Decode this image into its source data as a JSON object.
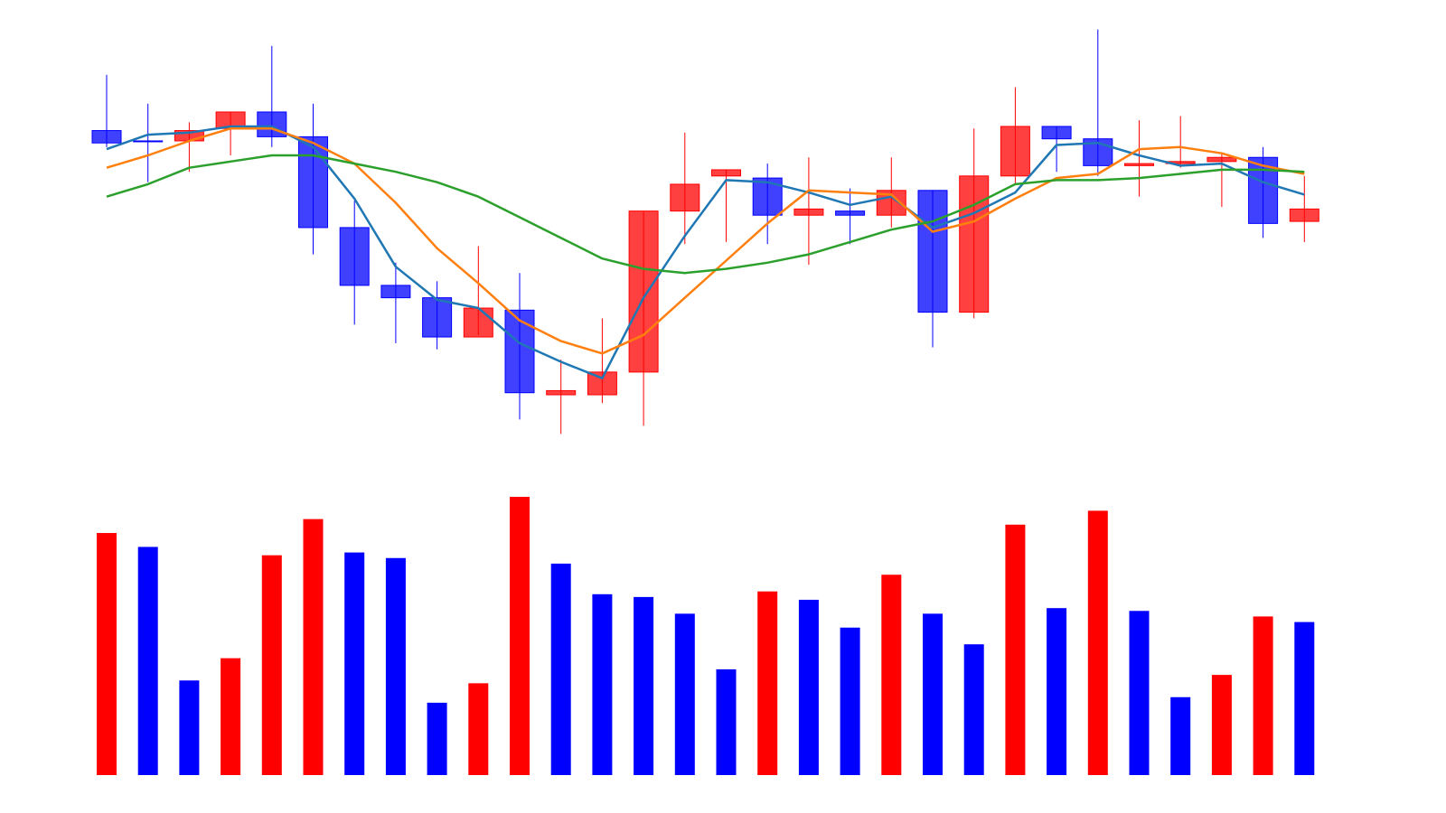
{
  "chart_data": [
    {
      "type": "candlestick",
      "title": "",
      "xlabel": "",
      "ylabel": "",
      "ylim": [
        0,
        100
      ],
      "grid": false,
      "legend": "none",
      "up_color": "#FF0000",
      "down_color": "#0000FF",
      "candles": [
        {
          "open": 74.5,
          "close": 71.5,
          "high": 88.0,
          "low": 70.5
        },
        {
          "open": 72.0,
          "close": 71.8,
          "high": 81.0,
          "low": 62.0
        },
        {
          "open": 72.0,
          "close": 74.5,
          "high": 76.5,
          "low": 64.5
        },
        {
          "open": 75.0,
          "close": 79.0,
          "high": 79.0,
          "low": 68.5
        },
        {
          "open": 79.0,
          "close": 73.0,
          "high": 95.0,
          "low": 70.5
        },
        {
          "open": 73.0,
          "close": 51.0,
          "high": 81.0,
          "low": 44.5
        },
        {
          "open": 51.0,
          "close": 37.0,
          "high": 57.5,
          "low": 27.5
        },
        {
          "open": 37.0,
          "close": 34.0,
          "high": 42.5,
          "low": 23.0
        },
        {
          "open": 34.0,
          "close": 24.5,
          "high": 38.0,
          "low": 21.5
        },
        {
          "open": 24.5,
          "close": 31.5,
          "high": 46.5,
          "low": 25.0
        },
        {
          "open": 31.0,
          "close": 11.0,
          "high": 40.0,
          "low": 4.5
        },
        {
          "open": 10.5,
          "close": 11.5,
          "high": 19.0,
          "low": 1.0
        },
        {
          "open": 10.5,
          "close": 16.0,
          "high": 29.0,
          "low": 8.5
        },
        {
          "open": 16.0,
          "close": 55.0,
          "high": 55.0,
          "low": 3.0
        },
        {
          "open": 55.0,
          "close": 61.5,
          "high": 74.0,
          "low": 47.0
        },
        {
          "open": 63.5,
          "close": 65.0,
          "high": 65.0,
          "low": 47.5
        },
        {
          "open": 63.0,
          "close": 54.0,
          "high": 66.5,
          "low": 47.0
        },
        {
          "open": 54.0,
          "close": 55.5,
          "high": 68.0,
          "low": 42.0
        },
        {
          "open": 55.0,
          "close": 54.0,
          "high": 60.5,
          "low": 47.0
        },
        {
          "open": 54.0,
          "close": 60.0,
          "high": 68.0,
          "low": 51.0
        },
        {
          "open": 60.0,
          "close": 30.5,
          "high": 60.0,
          "low": 22.0
        },
        {
          "open": 30.5,
          "close": 63.5,
          "high": 75.0,
          "low": 29.0
        },
        {
          "open": 63.5,
          "close": 75.5,
          "high": 85.0,
          "low": 61.5
        },
        {
          "open": 75.5,
          "close": 72.5,
          "high": 75.5,
          "low": 64.5
        },
        {
          "open": 72.5,
          "close": 66.0,
          "high": 99.0,
          "low": 63.5
        },
        {
          "open": 66.0,
          "close": 66.5,
          "high": 77.0,
          "low": 58.5
        },
        {
          "open": 66.5,
          "close": 67.0,
          "high": 78.0,
          "low": 65.5
        },
        {
          "open": 67.0,
          "close": 68.0,
          "high": 69.0,
          "low": 56.0
        },
        {
          "open": 68.0,
          "close": 52.0,
          "high": 70.5,
          "low": 48.5
        },
        {
          "open": 52.5,
          "close": 55.5,
          "high": 63.5,
          "low": 47.5
        }
      ],
      "series": [
        {
          "color": "#1F77B4",
          "values": [
            70.0,
            73.5,
            74.0,
            75.5,
            75.5,
            70.5,
            58.0,
            41.5,
            33.5,
            31.5,
            23.0,
            18.5,
            14.5,
            34.0,
            49.0,
            62.5,
            62.0,
            59.5,
            56.5,
            58.5,
            51.0,
            54.5,
            59.5,
            71.0,
            71.5,
            68.5,
            66.0,
            66.5,
            62.0,
            59.0
          ]
        },
        {
          "color": "#FF7F0E",
          "values": [
            65.5,
            68.5,
            72.0,
            75.0,
            75.0,
            71.5,
            66.5,
            57.0,
            46.0,
            37.5,
            28.5,
            23.5,
            20.5,
            25.0,
            34.0,
            43.0,
            52.0,
            60.0,
            59.5,
            59.0,
            50.0,
            52.5,
            58.0,
            63.0,
            64.0,
            70.0,
            70.5,
            69.0,
            66.0,
            64.0
          ]
        },
        {
          "color": "#2CA02C",
          "values": [
            58.5,
            61.5,
            65.5,
            67.0,
            68.5,
            68.5,
            66.5,
            64.5,
            62.0,
            58.5,
            53.5,
            48.5,
            43.5,
            41.0,
            40.0,
            41.0,
            42.5,
            44.5,
            47.5,
            50.5,
            52.5,
            56.5,
            61.5,
            62.5,
            62.5,
            63.0,
            64.0,
            65.0,
            65.0,
            64.5
          ]
        }
      ]
    },
    {
      "type": "bar",
      "title": "",
      "xlabel": "",
      "ylabel": "",
      "ylim": [
        0,
        100
      ],
      "grid": false,
      "legend": "none",
      "values": [
        87,
        82,
        34,
        42,
        79,
        92,
        80,
        78,
        26,
        33,
        100,
        76,
        65,
        64,
        58,
        38,
        66,
        63,
        53,
        72,
        58,
        47,
        90,
        60,
        95,
        59,
        28,
        36,
        57,
        55
      ],
      "colors": [
        "#FF0000",
        "#0000FF",
        "#0000FF",
        "#FF0000",
        "#FF0000",
        "#FF0000",
        "#0000FF",
        "#0000FF",
        "#0000FF",
        "#FF0000",
        "#FF0000",
        "#0000FF",
        "#0000FF",
        "#0000FF",
        "#0000FF",
        "#0000FF",
        "#FF0000",
        "#0000FF",
        "#0000FF",
        "#FF0000",
        "#0000FF",
        "#0000FF",
        "#FF0000",
        "#0000FF",
        "#FF0000",
        "#0000FF",
        "#0000FF",
        "#FF0000",
        "#FF0000",
        "#0000FF"
      ]
    }
  ]
}
